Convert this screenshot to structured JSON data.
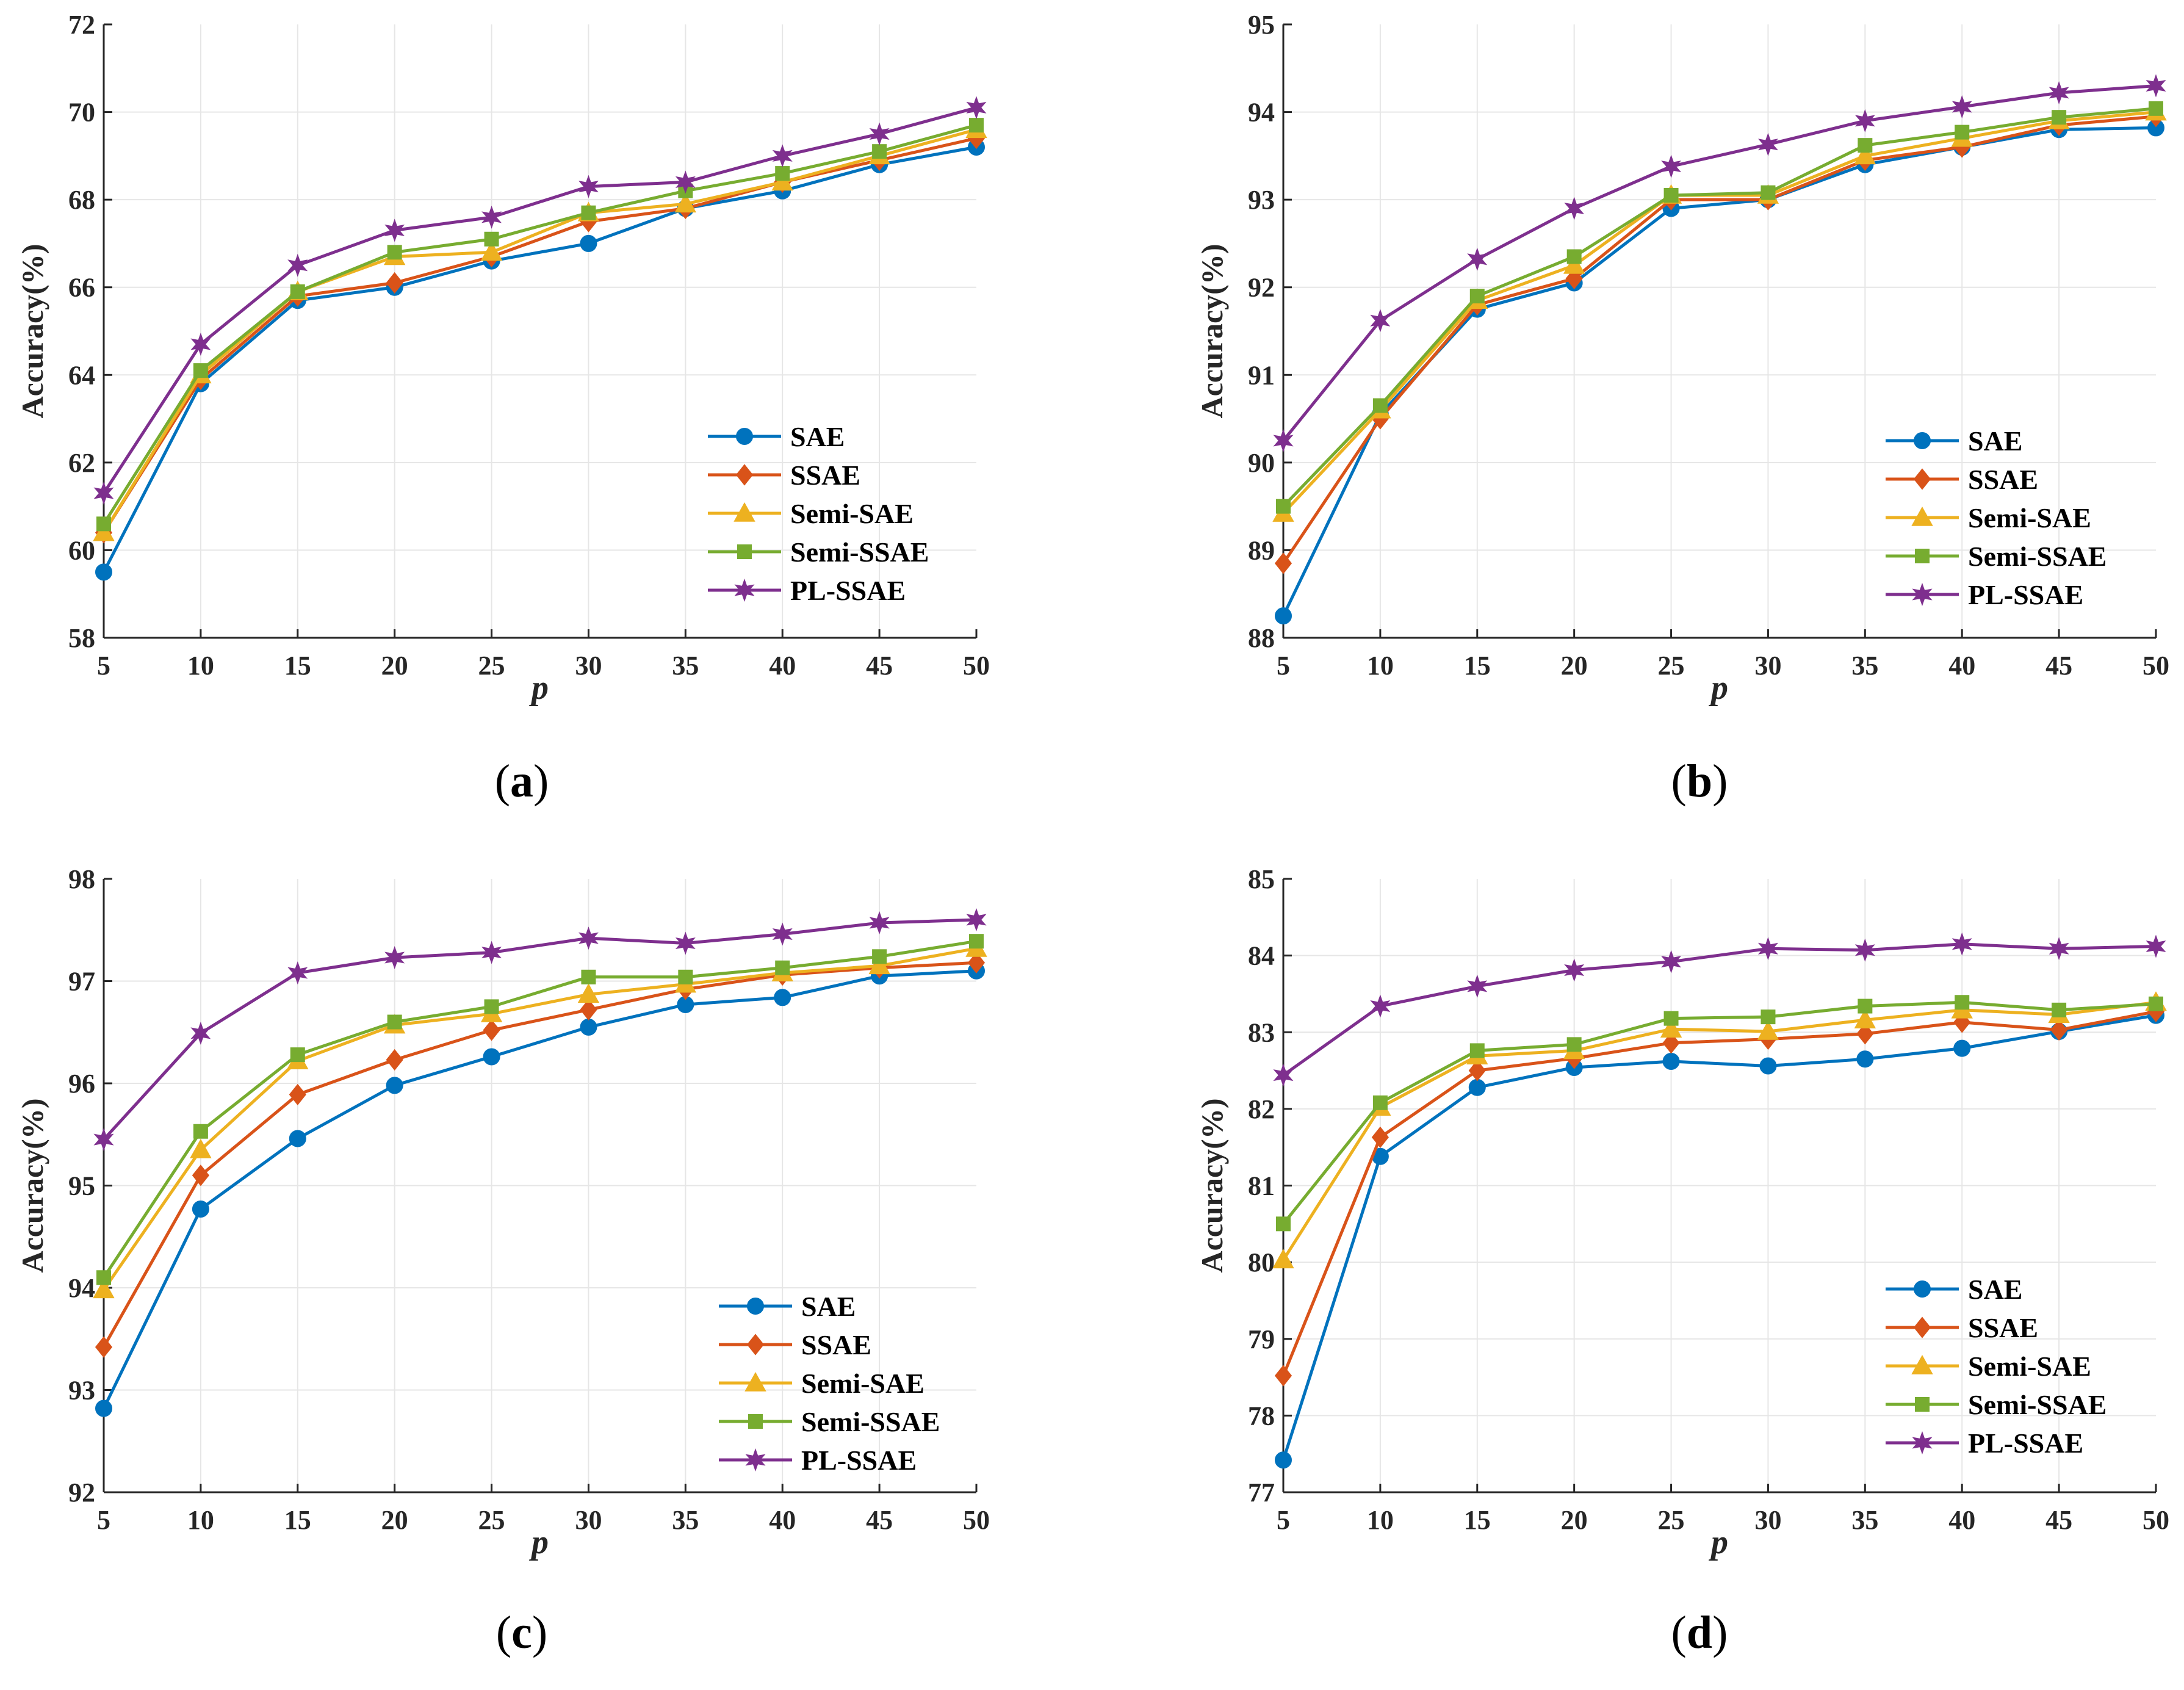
{
  "chart_data": [
    {
      "panel": "a",
      "type": "line",
      "caption_letter": "a",
      "xlabel": "p",
      "ylabel": "Accuracy(%)",
      "x": [
        5,
        10,
        15,
        20,
        25,
        30,
        35,
        40,
        45,
        50
      ],
      "xticks": [
        "5",
        "10",
        "15",
        "20",
        "25",
        "30",
        "35",
        "40",
        "45",
        "50"
      ],
      "ylim": [
        58,
        72
      ],
      "yticks": [
        "58",
        "60",
        "62",
        "64",
        "66",
        "68",
        "70",
        "72"
      ],
      "legend_loc": "bottom-right",
      "series": [
        {
          "name": "SAE",
          "values": [
            59.5,
            63.8,
            65.7,
            66.0,
            66.6,
            67.0,
            67.8,
            68.2,
            68.8,
            69.2
          ]
        },
        {
          "name": "SSAE",
          "values": [
            60.4,
            63.9,
            65.8,
            66.1,
            66.7,
            67.5,
            67.8,
            68.4,
            68.9,
            69.4
          ]
        },
        {
          "name": "Semi-SAE",
          "values": [
            60.4,
            64.0,
            65.9,
            66.7,
            66.8,
            67.7,
            67.9,
            68.4,
            69.0,
            69.6
          ]
        },
        {
          "name": "Semi-SSAE",
          "values": [
            60.6,
            64.1,
            65.9,
            66.8,
            67.1,
            67.7,
            68.2,
            68.6,
            69.1,
            69.7
          ]
        },
        {
          "name": "PL-SSAE",
          "values": [
            61.3,
            64.7,
            66.5,
            67.3,
            67.6,
            68.3,
            68.4,
            69.0,
            69.5,
            70.1
          ]
        }
      ]
    },
    {
      "panel": "b",
      "type": "line",
      "caption_letter": "b",
      "xlabel": "p",
      "ylabel": "Accuracy(%)",
      "x": [
        5,
        10,
        15,
        20,
        25,
        30,
        35,
        40,
        45,
        50
      ],
      "xticks": [
        "5",
        "10",
        "15",
        "20",
        "25",
        "30",
        "35",
        "40",
        "45",
        "50"
      ],
      "ylim": [
        88,
        95
      ],
      "yticks": [
        "88",
        "89",
        "90",
        "91",
        "92",
        "93",
        "94",
        "95"
      ],
      "legend_loc": "bottom-right",
      "series": [
        {
          "name": "SAE",
          "values": [
            88.25,
            90.55,
            91.75,
            92.05,
            92.9,
            93.0,
            93.4,
            93.6,
            93.8,
            93.82
          ]
        },
        {
          "name": "SSAE",
          "values": [
            88.85,
            90.5,
            91.8,
            92.1,
            93.0,
            93.0,
            93.45,
            93.6,
            93.85,
            93.95
          ]
        },
        {
          "name": "Semi-SAE",
          "values": [
            89.42,
            90.6,
            91.85,
            92.25,
            93.05,
            93.05,
            93.5,
            93.7,
            93.9,
            94.0
          ]
        },
        {
          "name": "Semi-SSAE",
          "values": [
            89.5,
            90.65,
            91.9,
            92.35,
            93.05,
            93.08,
            93.62,
            93.77,
            93.94,
            94.04
          ]
        },
        {
          "name": "PL-SSAE",
          "values": [
            90.25,
            91.62,
            92.32,
            92.9,
            93.38,
            93.63,
            93.9,
            94.06,
            94.22,
            94.3
          ]
        }
      ]
    },
    {
      "panel": "c",
      "type": "line",
      "caption_letter": "c",
      "xlabel": "p",
      "ylabel": "Accuracy(%)",
      "x": [
        5,
        10,
        15,
        20,
        25,
        30,
        35,
        40,
        45,
        50
      ],
      "xticks": [
        "5",
        "10",
        "15",
        "20",
        "25",
        "30",
        "35",
        "40",
        "45",
        "50"
      ],
      "ylim": [
        92,
        98
      ],
      "yticks": [
        "92",
        "93",
        "94",
        "95",
        "96",
        "97",
        "98"
      ],
      "legend_loc": "bottom-right",
      "series": [
        {
          "name": "SAE",
          "values": [
            92.82,
            94.77,
            95.46,
            95.98,
            96.26,
            96.55,
            96.77,
            96.84,
            97.05,
            97.1
          ]
        },
        {
          "name": "SSAE",
          "values": [
            93.42,
            95.1,
            95.89,
            96.23,
            96.52,
            96.72,
            96.92,
            97.06,
            97.13,
            97.18
          ]
        },
        {
          "name": "Semi-SAE",
          "values": [
            93.98,
            95.35,
            96.22,
            96.57,
            96.68,
            96.87,
            96.97,
            97.08,
            97.15,
            97.32
          ]
        },
        {
          "name": "Semi-SSAE",
          "values": [
            94.1,
            95.53,
            96.28,
            96.6,
            96.75,
            97.04,
            97.04,
            97.13,
            97.24,
            97.39
          ]
        },
        {
          "name": "PL-SSAE",
          "values": [
            95.45,
            96.49,
            97.08,
            97.23,
            97.28,
            97.42,
            97.37,
            97.46,
            97.57,
            97.6
          ]
        }
      ]
    },
    {
      "panel": "d",
      "type": "line",
      "caption_letter": "d",
      "xlabel": "p",
      "ylabel": "Accuracy(%)",
      "x": [
        5,
        10,
        15,
        20,
        25,
        30,
        35,
        40,
        45,
        50
      ],
      "xticks": [
        "5",
        "10",
        "15",
        "20",
        "25",
        "30",
        "35",
        "40",
        "45",
        "50"
      ],
      "ylim": [
        77,
        85
      ],
      "yticks": [
        "77",
        "78",
        "79",
        "80",
        "81",
        "82",
        "83",
        "84",
        "85"
      ],
      "legend_loc": "bottom-right",
      "series": [
        {
          "name": "SAE",
          "values": [
            77.42,
            81.38,
            82.28,
            82.54,
            82.62,
            82.56,
            82.65,
            82.79,
            83.01,
            83.22
          ]
        },
        {
          "name": "SSAE",
          "values": [
            78.52,
            81.63,
            82.5,
            82.66,
            82.86,
            82.91,
            82.98,
            83.13,
            83.03,
            83.27
          ]
        },
        {
          "name": "Semi-SAE",
          "values": [
            80.03,
            82.02,
            82.69,
            82.76,
            83.04,
            83.01,
            83.16,
            83.29,
            83.23,
            83.39
          ]
        },
        {
          "name": "Semi-SSAE",
          "values": [
            80.5,
            82.08,
            82.76,
            82.84,
            83.18,
            83.2,
            83.34,
            83.39,
            83.29,
            83.37
          ]
        },
        {
          "name": "PL-SSAE",
          "values": [
            82.44,
            83.34,
            83.6,
            83.81,
            83.92,
            84.09,
            84.07,
            84.15,
            84.09,
            84.12
          ]
        }
      ]
    }
  ],
  "style": {
    "series_colors": [
      "#0072BD",
      "#D95319",
      "#EDB120",
      "#77AC30",
      "#7E2F8E"
    ],
    "series_markers": [
      "circle",
      "diamond",
      "triangle",
      "square",
      "star"
    ],
    "grid_color": "#e6e6e6",
    "axis_color": "#262626"
  }
}
